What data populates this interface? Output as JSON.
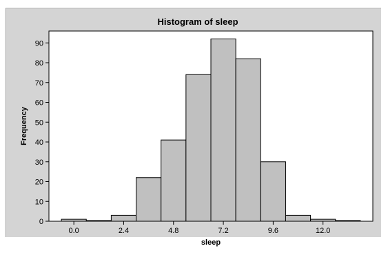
{
  "chart_data": {
    "type": "histogram",
    "title": "Histogram of sleep",
    "xlabel": "sleep",
    "ylabel": "Frequency",
    "bin_width": 1.2,
    "bins": [
      {
        "start": -0.6,
        "end": 0.6,
        "count": 1
      },
      {
        "start": 0.6,
        "end": 1.8,
        "count": 0
      },
      {
        "start": 1.8,
        "end": 3.0,
        "count": 3
      },
      {
        "start": 3.0,
        "end": 4.2,
        "count": 22
      },
      {
        "start": 4.2,
        "end": 5.4,
        "count": 41
      },
      {
        "start": 5.4,
        "end": 6.6,
        "count": 74
      },
      {
        "start": 6.6,
        "end": 7.8,
        "count": 92
      },
      {
        "start": 7.8,
        "end": 9.0,
        "count": 82
      },
      {
        "start": 9.0,
        "end": 10.2,
        "count": 30
      },
      {
        "start": 10.2,
        "end": 11.4,
        "count": 3
      },
      {
        "start": 11.4,
        "end": 12.6,
        "count": 1
      },
      {
        "start": 12.6,
        "end": 13.8,
        "count": 0
      }
    ],
    "x_ticks": [
      "0.0",
      "2.4",
      "4.8",
      "7.2",
      "9.6",
      "12.0"
    ],
    "y_ticks": [
      "0",
      "10",
      "20",
      "30",
      "40",
      "50",
      "60",
      "70",
      "80",
      "90"
    ],
    "xlim": [
      -1.2,
      14.4
    ],
    "ylim": [
      0,
      96
    ],
    "grid": false,
    "legend": "none",
    "colors": {
      "bar_fill": "#c0c0c0",
      "bar_stroke": "#000000",
      "panel_background": "#d4d4d4",
      "plot_background": "#ffffff"
    }
  }
}
